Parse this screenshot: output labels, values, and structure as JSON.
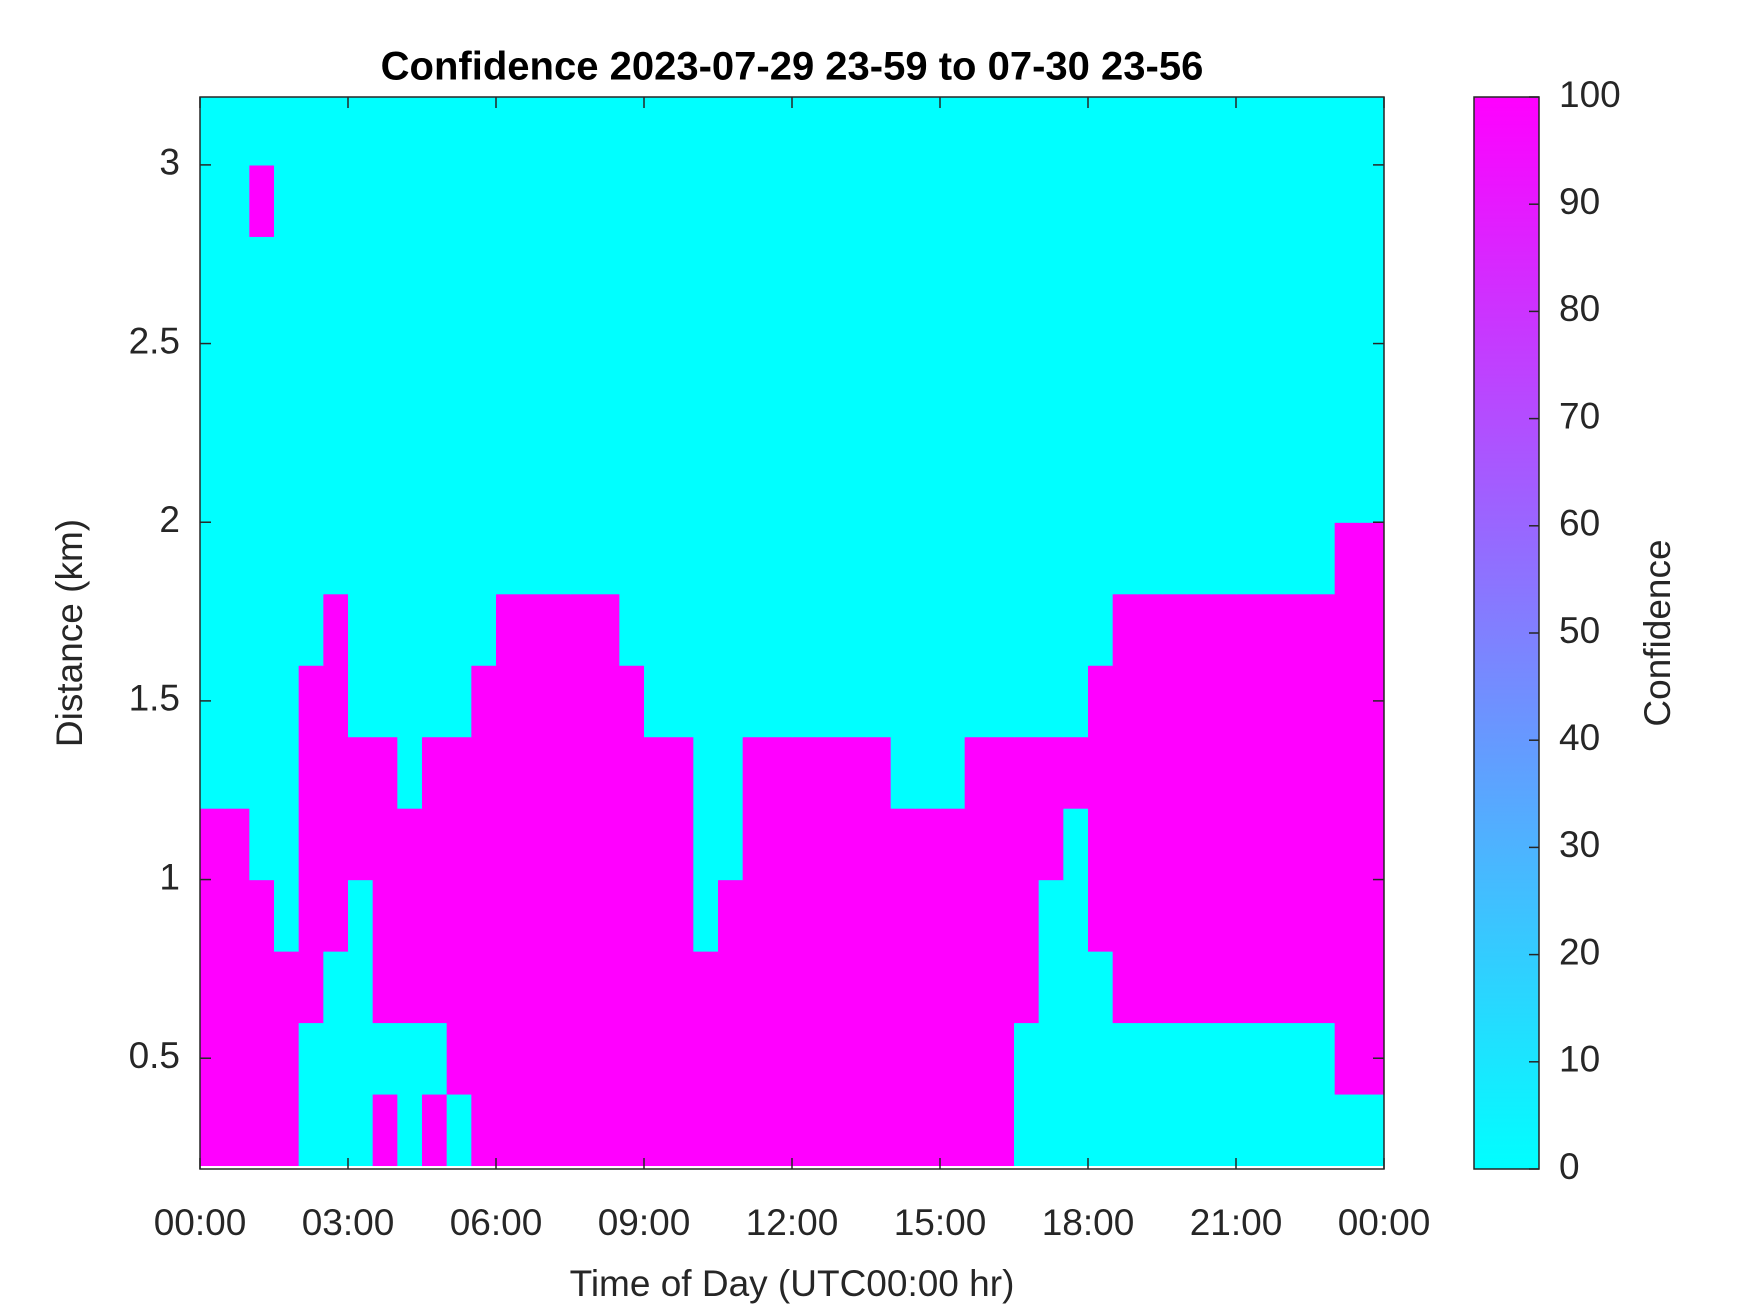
{
  "chart_data": {
    "type": "heatmap",
    "title": "Confidence 2023-07-29 23-59 to 07-30 23-56",
    "x_label": "Time of Day (UTC00:00 hr)",
    "y_label": "Distance (km)",
    "colorbar_label": "Confidence",
    "colormap": "cool",
    "clim": [
      0,
      100
    ],
    "cticks": [
      0,
      10,
      20,
      30,
      40,
      50,
      60,
      70,
      80,
      90,
      100
    ],
    "xlim": [
      0,
      24
    ],
    "xticks": [
      {
        "value": 0,
        "label": "00:00"
      },
      {
        "value": 3,
        "label": "03:00"
      },
      {
        "value": 6,
        "label": "06:00"
      },
      {
        "value": 9,
        "label": "09:00"
      },
      {
        "value": 12,
        "label": "12:00"
      },
      {
        "value": 15,
        "label": "15:00"
      },
      {
        "value": 18,
        "label": "18:00"
      },
      {
        "value": 21,
        "label": "21:00"
      },
      {
        "value": 24,
        "label": "00:00"
      }
    ],
    "ylim": [
      0.19,
      3.19
    ],
    "yticks": [
      0.5,
      1,
      1.5,
      2,
      2.5,
      3
    ],
    "x": [
      0.25,
      0.75,
      1.25,
      1.75,
      2.25,
      2.75,
      3.25,
      3.75,
      4.25,
      4.75,
      5.25,
      5.75,
      6.25,
      6.75,
      7.25,
      7.75,
      8.25,
      8.75,
      9.25,
      9.75,
      10.25,
      10.75,
      11.25,
      11.75,
      12.25,
      12.75,
      13.25,
      13.75,
      14.25,
      14.75,
      15.25,
      15.75,
      16.25,
      16.75,
      17.25,
      17.75,
      18.25,
      18.75,
      19.25,
      19.75,
      20.25,
      20.75,
      21.25,
      21.75,
      22.25,
      22.75,
      23.25,
      23.75
    ],
    "y": [
      0.3,
      0.5,
      0.7,
      0.9,
      1.1,
      1.3,
      1.5,
      1.7,
      1.9,
      2.1,
      2.3,
      2.5,
      2.7,
      2.9,
      3.1
    ],
    "z": [
      [
        100,
        100,
        100,
        100,
        0,
        0,
        0,
        100,
        0,
        100,
        0,
        100,
        100,
        100,
        100,
        100,
        100,
        100,
        100,
        100,
        100,
        100,
        100,
        100,
        100,
        100,
        100,
        100,
        100,
        100,
        100,
        100,
        100,
        0,
        0,
        0,
        0,
        0,
        0,
        0,
        0,
        0,
        0,
        0,
        0,
        0,
        0,
        0
      ],
      [
        100,
        100,
        100,
        100,
        0,
        0,
        0,
        0,
        0,
        0,
        100,
        100,
        100,
        100,
        100,
        100,
        100,
        100,
        100,
        100,
        100,
        100,
        100,
        100,
        100,
        100,
        100,
        100,
        100,
        100,
        100,
        100,
        100,
        0,
        0,
        0,
        0,
        0,
        0,
        0,
        0,
        0,
        0,
        0,
        0,
        0,
        100,
        100
      ],
      [
        100,
        100,
        100,
        100,
        100,
        0,
        0,
        100,
        100,
        100,
        100,
        100,
        100,
        100,
        100,
        100,
        100,
        100,
        100,
        100,
        100,
        100,
        100,
        100,
        100,
        100,
        100,
        100,
        100,
        100,
        100,
        100,
        100,
        100,
        0,
        0,
        0,
        100,
        100,
        100,
        100,
        100,
        100,
        100,
        100,
        100,
        100,
        100
      ],
      [
        100,
        100,
        100,
        0,
        100,
        100,
        0,
        100,
        100,
        100,
        100,
        100,
        100,
        100,
        100,
        100,
        100,
        100,
        100,
        100,
        0,
        100,
        100,
        100,
        100,
        100,
        100,
        100,
        100,
        100,
        100,
        100,
        100,
        100,
        0,
        0,
        100,
        100,
        100,
        100,
        100,
        100,
        100,
        100,
        100,
        100,
        100,
        100
      ],
      [
        100,
        100,
        0,
        0,
        100,
        100,
        100,
        100,
        100,
        100,
        100,
        100,
        100,
        100,
        100,
        100,
        100,
        100,
        100,
        100,
        0,
        0,
        100,
        100,
        100,
        100,
        100,
        100,
        100,
        100,
        100,
        100,
        100,
        100,
        100,
        0,
        100,
        100,
        100,
        100,
        100,
        100,
        100,
        100,
        100,
        100,
        100,
        100
      ],
      [
        0,
        0,
        0,
        0,
        100,
        100,
        100,
        100,
        0,
        100,
        100,
        100,
        100,
        100,
        100,
        100,
        100,
        100,
        100,
        100,
        0,
        0,
        100,
        100,
        100,
        100,
        100,
        100,
        0,
        0,
        0,
        100,
        100,
        100,
        100,
        100,
        100,
        100,
        100,
        100,
        100,
        100,
        100,
        100,
        100,
        100,
        100,
        100
      ],
      [
        0,
        0,
        0,
        0,
        100,
        100,
        0,
        0,
        0,
        0,
        0,
        100,
        100,
        100,
        100,
        100,
        100,
        100,
        0,
        0,
        0,
        0,
        0,
        0,
        0,
        0,
        0,
        0,
        0,
        0,
        0,
        0,
        0,
        0,
        0,
        0,
        100,
        100,
        100,
        100,
        100,
        100,
        100,
        100,
        100,
        100,
        100,
        100
      ],
      [
        0,
        0,
        0,
        0,
        0,
        100,
        0,
        0,
        0,
        0,
        0,
        0,
        100,
        100,
        100,
        100,
        100,
        0,
        0,
        0,
        0,
        0,
        0,
        0,
        0,
        0,
        0,
        0,
        0,
        0,
        0,
        0,
        0,
        0,
        0,
        0,
        0,
        100,
        100,
        100,
        100,
        100,
        100,
        100,
        100,
        100,
        100,
        100
      ],
      [
        0,
        0,
        0,
        0,
        0,
        0,
        0,
        0,
        0,
        0,
        0,
        0,
        0,
        0,
        0,
        0,
        0,
        0,
        0,
        0,
        0,
        0,
        0,
        0,
        0,
        0,
        0,
        0,
        0,
        0,
        0,
        0,
        0,
        0,
        0,
        0,
        0,
        0,
        0,
        0,
        0,
        0,
        0,
        0,
        0,
        0,
        100,
        100
      ],
      [
        0,
        0,
        0,
        0,
        0,
        0,
        0,
        0,
        0,
        0,
        0,
        0,
        0,
        0,
        0,
        0,
        0,
        0,
        0,
        0,
        0,
        0,
        0,
        0,
        0,
        0,
        0,
        0,
        0,
        0,
        0,
        0,
        0,
        0,
        0,
        0,
        0,
        0,
        0,
        0,
        0,
        0,
        0,
        0,
        0,
        0,
        0,
        0
      ],
      [
        0,
        0,
        0,
        0,
        0,
        0,
        0,
        0,
        0,
        0,
        0,
        0,
        0,
        0,
        0,
        0,
        0,
        0,
        0,
        0,
        0,
        0,
        0,
        0,
        0,
        0,
        0,
        0,
        0,
        0,
        0,
        0,
        0,
        0,
        0,
        0,
        0,
        0,
        0,
        0,
        0,
        0,
        0,
        0,
        0,
        0,
        0,
        0
      ],
      [
        0,
        0,
        0,
        0,
        0,
        0,
        0,
        0,
        0,
        0,
        0,
        0,
        0,
        0,
        0,
        0,
        0,
        0,
        0,
        0,
        0,
        0,
        0,
        0,
        0,
        0,
        0,
        0,
        0,
        0,
        0,
        0,
        0,
        0,
        0,
        0,
        0,
        0,
        0,
        0,
        0,
        0,
        0,
        0,
        0,
        0,
        0,
        0
      ],
      [
        0,
        0,
        0,
        0,
        0,
        0,
        0,
        0,
        0,
        0,
        0,
        0,
        0,
        0,
        0,
        0,
        0,
        0,
        0,
        0,
        0,
        0,
        0,
        0,
        0,
        0,
        0,
        0,
        0,
        0,
        0,
        0,
        0,
        0,
        0,
        0,
        0,
        0,
        0,
        0,
        0,
        0,
        0,
        0,
        0,
        0,
        0,
        0
      ],
      [
        0,
        0,
        100,
        0,
        0,
        0,
        0,
        0,
        0,
        0,
        0,
        0,
        0,
        0,
        0,
        0,
        0,
        0,
        0,
        0,
        0,
        0,
        0,
        0,
        0,
        0,
        0,
        0,
        0,
        0,
        0,
        0,
        0,
        0,
        0,
        0,
        0,
        0,
        0,
        0,
        0,
        0,
        0,
        0,
        0,
        0,
        0,
        0
      ],
      [
        0,
        0,
        0,
        0,
        0,
        0,
        0,
        0,
        0,
        0,
        0,
        0,
        0,
        0,
        0,
        0,
        0,
        0,
        0,
        0,
        0,
        0,
        0,
        0,
        0,
        0,
        0,
        0,
        0,
        0,
        0,
        0,
        0,
        0,
        0,
        0,
        0,
        0,
        0,
        0,
        0,
        0,
        0,
        0,
        0,
        0,
        0,
        0
      ]
    ]
  }
}
